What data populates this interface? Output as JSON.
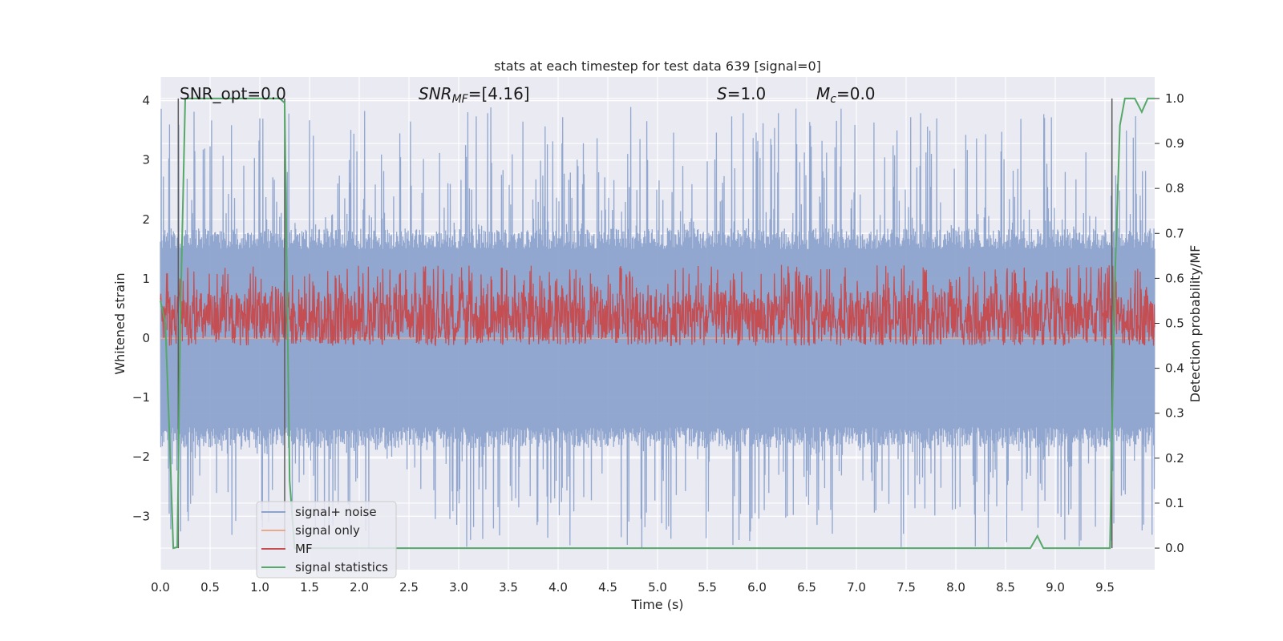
{
  "chart_data": {
    "type": "line",
    "title": "stats at each timestep for test data 639 [signal=0]",
    "xlabel": "Time (s)",
    "ylabel": "Whitened strain",
    "y2label": "Detection probability/MF",
    "xlim": [
      0,
      10
    ],
    "ylim": [
      -3.9,
      4.4
    ],
    "y2lim": [
      -0.048,
      1.048
    ],
    "x_ticks": [
      0.0,
      0.5,
      1.0,
      1.5,
      2.0,
      2.5,
      3.0,
      3.5,
      4.0,
      4.5,
      5.0,
      5.5,
      6.0,
      6.5,
      7.0,
      7.5,
      8.0,
      8.5,
      9.0,
      9.5
    ],
    "x_tick_labels": [
      "0.0",
      "0.5",
      "1.0",
      "1.5",
      "2.0",
      "2.5",
      "3.0",
      "3.5",
      "4.0",
      "4.5",
      "5.0",
      "5.5",
      "6.0",
      "6.5",
      "7.0",
      "7.5",
      "8.0",
      "8.5",
      "9.0",
      "9.5"
    ],
    "y_ticks": [
      4,
      3,
      2,
      1,
      0,
      -1,
      -2,
      -3
    ],
    "y_tick_labels": [
      "4",
      "3",
      "2",
      "1",
      "0",
      "−1",
      "−2",
      "−3"
    ],
    "y2_ticks": [
      1.0,
      0.9,
      0.8,
      0.7,
      0.6,
      0.5,
      0.4,
      0.3,
      0.2,
      0.1,
      0.0
    ],
    "y2_tick_labels": [
      "1.0",
      "0.9",
      "0.8",
      "0.7",
      "0.6",
      "0.5",
      "0.4",
      "0.3",
      "0.2",
      "0.1",
      "0.0"
    ],
    "grid": true,
    "legend_position": "lower-left",
    "annotations": {
      "snr_opt": "SNR_opt=0.0",
      "snr_mf_sym": "SNR",
      "snr_mf_sub": "MF",
      "snr_mf_val": "=[4.16]",
      "s_sym": "S",
      "s_val": "=1.0",
      "mc_sym": "M",
      "mc_sub": "c",
      "mc_val": "=0.0"
    },
    "series": [
      {
        "name": "signal+ noise",
        "color": "#8da3cc",
        "style": "noise",
        "envelope": {
          "base_hi": 1.5,
          "base_lo": -1.5,
          "peak_hi": 3.9,
          "peak_lo": -3.55
        }
      },
      {
        "name": "signal only",
        "color": "#e8a98c",
        "style": "flat",
        "value": 0.0
      },
      {
        "name": "MF",
        "color": "#c44e52",
        "style": "noise",
        "axis": "right",
        "envelope": {
          "base_lo": 0.45,
          "base_hi": 0.57,
          "peak_hi": 0.63
        }
      },
      {
        "name": "signal statistics",
        "color": "#55a868",
        "style": "line",
        "axis": "right",
        "x": [
          0.0,
          0.05,
          0.1,
          0.13,
          0.17,
          0.2,
          0.25,
          0.3,
          1.0,
          1.2,
          1.25,
          1.3,
          1.35,
          1.4,
          2.0,
          5.0,
          8.75,
          8.82,
          8.88,
          9.0,
          9.55,
          9.57,
          9.6,
          9.65,
          9.7,
          9.8,
          9.87,
          9.93,
          10.0
        ],
        "y": [
          0.55,
          0.5,
          0.2,
          0.0,
          0.002,
          0.5,
          1.0,
          1.0,
          1.0,
          1.0,
          0.99,
          0.15,
          0.0,
          0.0,
          0.0,
          0.0,
          0.0,
          0.027,
          0.0,
          0.0,
          0.0,
          0.25,
          0.6,
          0.94,
          1.0,
          1.0,
          0.97,
          1.0,
          1.0
        ]
      }
    ],
    "vertical_lines": {
      "color": "#5a5a5a",
      "x": [
        0.18,
        1.25,
        9.57
      ]
    }
  }
}
